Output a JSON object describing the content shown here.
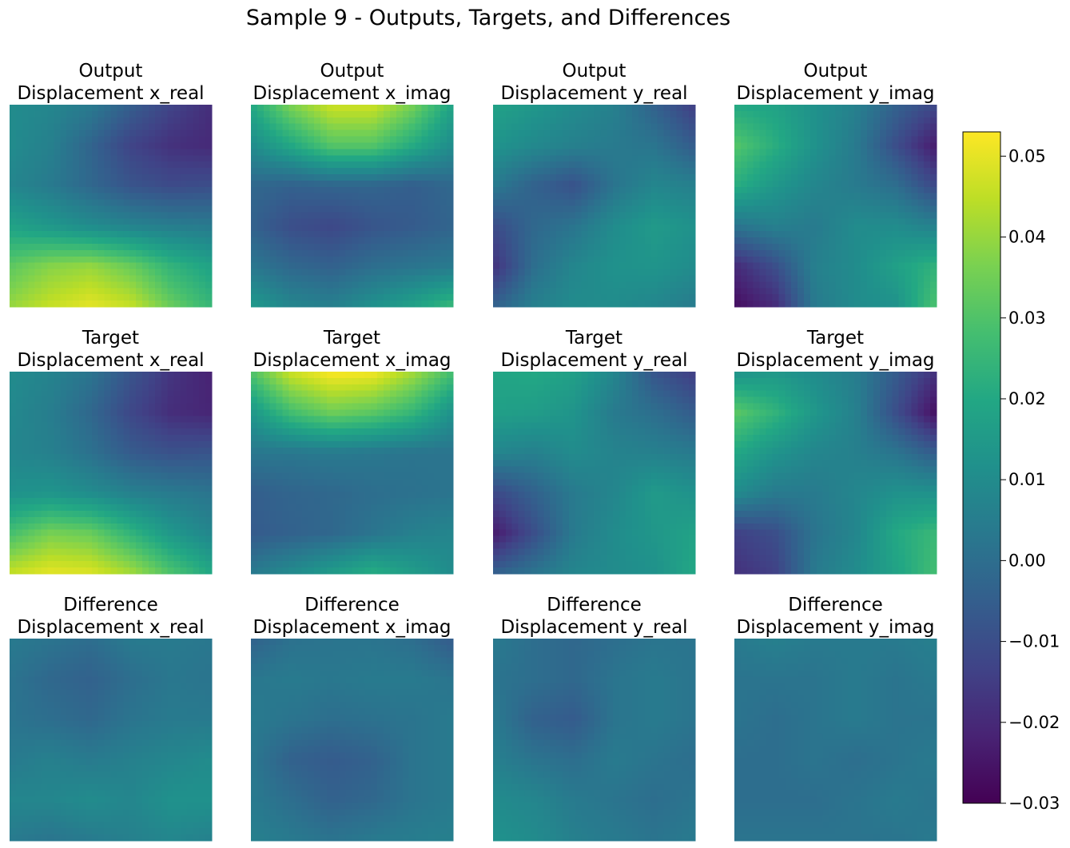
{
  "chart_data": {
    "type": "heatmap",
    "title": "Sample 9 - Outputs, Targets, and Differences",
    "colormap": "viridis",
    "colorbar": {
      "vmin": -0.03,
      "vmax": 0.053,
      "ticks": [
        {
          "value": 0.05,
          "label": "0.05"
        },
        {
          "value": 0.04,
          "label": "0.04"
        },
        {
          "value": 0.03,
          "label": "0.03"
        },
        {
          "value": 0.02,
          "label": "0.02"
        },
        {
          "value": 0.01,
          "label": "0.01"
        },
        {
          "value": 0.0,
          "label": "0.00"
        },
        {
          "value": -0.01,
          "label": "−0.01"
        },
        {
          "value": -0.02,
          "label": "−0.02"
        },
        {
          "value": -0.03,
          "label": "−0.03"
        }
      ]
    },
    "axes_visible": false,
    "grid": false,
    "rows": [
      {
        "name": "Output",
        "panels": [
          {
            "title": "Output",
            "subtitle": "Displacement x_real"
          },
          {
            "title": "Output",
            "subtitle": "Displacement x_imag"
          },
          {
            "title": "Output",
            "subtitle": "Displacement y_real"
          },
          {
            "title": "Output",
            "subtitle": "Displacement y_imag"
          }
        ]
      },
      {
        "name": "Target",
        "panels": [
          {
            "title": "Target",
            "subtitle": "Displacement x_real"
          },
          {
            "title": "Target",
            "subtitle": "Displacement x_imag"
          },
          {
            "title": "Target",
            "subtitle": "Displacement y_real"
          },
          {
            "title": "Target",
            "subtitle": "Displacement y_imag"
          }
        ]
      },
      {
        "name": "Difference",
        "panels": [
          {
            "title": "Difference",
            "subtitle": "Displacement x_real"
          },
          {
            "title": "Difference",
            "subtitle": "Displacement x_imag"
          },
          {
            "title": "Difference",
            "subtitle": "Displacement y_real"
          },
          {
            "title": "Difference",
            "subtitle": "Displacement y_imag"
          }
        ]
      }
    ],
    "fields": {
      "output_x_real": [
        [
          0.01,
          0.008,
          0.004,
          -0.005,
          -0.013,
          -0.019
        ],
        [
          0.01,
          0.006,
          -0.003,
          -0.013,
          -0.018,
          -0.02
        ],
        [
          0.008,
          0.004,
          -0.002,
          -0.008,
          -0.011,
          -0.01
        ],
        [
          0.018,
          0.014,
          0.01,
          0.007,
          0.005,
          0.004
        ],
        [
          0.032,
          0.038,
          0.04,
          0.034,
          0.024,
          0.018
        ],
        [
          0.04,
          0.046,
          0.05,
          0.046,
          0.034,
          0.025
        ]
      ],
      "output_x_imag": [
        [
          0.02,
          0.037,
          0.047,
          0.047,
          0.036,
          0.018
        ],
        [
          0.01,
          0.02,
          0.031,
          0.031,
          0.021,
          0.01
        ],
        [
          -0.002,
          -0.004,
          -0.003,
          -0.003,
          -0.005,
          -0.002
        ],
        [
          -0.004,
          -0.01,
          -0.012,
          -0.008,
          -0.006,
          -0.003
        ],
        [
          0.003,
          -0.002,
          -0.004,
          0.0,
          0.002,
          0.004
        ],
        [
          0.015,
          0.008,
          0.006,
          0.012,
          0.018,
          0.026
        ]
      ],
      "output_y_real": [
        [
          0.018,
          0.014,
          0.01,
          0.006,
          -0.004,
          -0.015
        ],
        [
          0.013,
          0.009,
          0.006,
          0.004,
          0.002,
          -0.006
        ],
        [
          0.004,
          -0.004,
          -0.009,
          0.002,
          0.008,
          0.006
        ],
        [
          -0.011,
          -0.002,
          0.002,
          0.01,
          0.015,
          0.012
        ],
        [
          -0.018,
          0.0,
          0.008,
          0.012,
          0.013,
          0.01
        ],
        [
          -0.004,
          0.006,
          0.01,
          0.01,
          0.008,
          0.004
        ]
      ],
      "output_y_imag": [
        [
          0.02,
          0.018,
          0.012,
          0.006,
          -0.004,
          -0.012
        ],
        [
          0.031,
          0.022,
          0.012,
          0.004,
          -0.01,
          -0.024
        ],
        [
          0.022,
          0.014,
          0.008,
          0.004,
          0.0,
          -0.012
        ],
        [
          0.002,
          0.006,
          0.004,
          0.01,
          0.01,
          0.006
        ],
        [
          -0.02,
          -0.01,
          0.006,
          0.01,
          0.017,
          0.024
        ],
        [
          -0.027,
          -0.02,
          0.004,
          0.01,
          0.012,
          0.03
        ]
      ],
      "target_x_real": [
        [
          0.01,
          0.007,
          0.002,
          -0.008,
          -0.017,
          -0.022
        ],
        [
          0.009,
          0.005,
          -0.002,
          -0.012,
          -0.019,
          -0.021
        ],
        [
          0.008,
          0.006,
          0.001,
          -0.006,
          -0.009,
          -0.008
        ],
        [
          0.012,
          0.013,
          0.01,
          0.006,
          0.004,
          0.002
        ],
        [
          0.028,
          0.036,
          0.034,
          0.024,
          0.014,
          0.008
        ],
        [
          0.046,
          0.05,
          0.049,
          0.042,
          0.03,
          0.02
        ]
      ],
      "target_x_imag": [
        [
          0.03,
          0.047,
          0.053,
          0.052,
          0.042,
          0.028
        ],
        [
          0.014,
          0.028,
          0.035,
          0.032,
          0.025,
          0.012
        ],
        [
          0.003,
          0.003,
          0.004,
          0.003,
          0.002,
          0.002
        ],
        [
          -0.005,
          -0.003,
          -0.002,
          0.0,
          0.001,
          0.002
        ],
        [
          -0.006,
          -0.004,
          -0.002,
          0.002,
          0.006,
          0.008
        ],
        [
          0.004,
          0.01,
          0.016,
          0.022,
          0.016,
          0.01
        ]
      ],
      "target_y_real": [
        [
          0.019,
          0.02,
          0.017,
          0.008,
          -0.008,
          -0.015
        ],
        [
          0.017,
          0.016,
          0.013,
          0.004,
          0.0,
          -0.006
        ],
        [
          0.008,
          0.006,
          0.01,
          0.007,
          0.006,
          0.004
        ],
        [
          -0.012,
          -0.004,
          0.004,
          0.008,
          0.015,
          0.012
        ],
        [
          -0.024,
          -0.01,
          0.004,
          0.01,
          0.014,
          0.018
        ],
        [
          -0.004,
          0.002,
          0.008,
          0.01,
          0.012,
          0.02
        ]
      ],
      "target_y_imag": [
        [
          0.012,
          0.014,
          0.01,
          0.005,
          -0.006,
          -0.018
        ],
        [
          0.032,
          0.024,
          0.014,
          0.006,
          -0.01,
          -0.027
        ],
        [
          0.02,
          0.013,
          0.008,
          0.006,
          0.002,
          -0.006
        ],
        [
          0.01,
          0.004,
          0.004,
          0.008,
          0.012,
          0.012
        ],
        [
          -0.014,
          -0.01,
          0.002,
          0.008,
          0.02,
          0.026
        ],
        [
          -0.018,
          -0.014,
          0.004,
          0.01,
          0.018,
          0.028
        ]
      ],
      "difference_x_real": [
        [
          0.004,
          0.002,
          0.0,
          0.004,
          0.004,
          0.003
        ],
        [
          0.002,
          -0.002,
          -0.004,
          0.0,
          0.003,
          0.002
        ],
        [
          0.002,
          0.0,
          -0.002,
          0.002,
          0.004,
          0.004
        ],
        [
          0.004,
          0.006,
          0.004,
          0.006,
          0.008,
          0.01
        ],
        [
          0.008,
          0.008,
          0.01,
          0.008,
          0.012,
          0.012
        ],
        [
          0.004,
          0.002,
          0.004,
          0.006,
          0.008,
          0.006
        ]
      ],
      "difference_x_imag": [
        [
          -0.004,
          0.001,
          0.002,
          0.002,
          0.0,
          -0.006
        ],
        [
          0.003,
          0.004,
          0.003,
          0.004,
          0.004,
          0.002
        ],
        [
          0.004,
          0.002,
          0.0,
          0.001,
          0.002,
          0.004
        ],
        [
          0.003,
          -0.004,
          -0.006,
          -0.004,
          0.002,
          0.004
        ],
        [
          0.004,
          0.0,
          -0.004,
          -0.002,
          0.002,
          0.004
        ],
        [
          0.006,
          0.004,
          0.002,
          0.004,
          0.005,
          0.006
        ]
      ],
      "difference_y_real": [
        [
          0.004,
          0.0,
          -0.002,
          0.0,
          0.002,
          0.002
        ],
        [
          0.002,
          0.0,
          -0.002,
          0.002,
          0.004,
          0.002
        ],
        [
          0.004,
          -0.004,
          -0.006,
          0.002,
          0.004,
          0.002
        ],
        [
          0.006,
          0.002,
          0.0,
          0.004,
          0.002,
          0.0
        ],
        [
          0.01,
          0.008,
          0.004,
          0.002,
          0.0,
          0.002
        ],
        [
          0.012,
          0.01,
          0.006,
          0.004,
          0.002,
          0.004
        ]
      ],
      "difference_y_imag": [
        [
          0.004,
          0.006,
          0.004,
          0.004,
          0.004,
          0.006
        ],
        [
          0.002,
          0.002,
          0.002,
          0.004,
          0.002,
          0.004
        ],
        [
          0.002,
          0.0,
          0.002,
          0.004,
          0.002,
          0.002
        ],
        [
          0.0,
          0.0,
          0.002,
          0.0,
          0.002,
          0.004
        ],
        [
          0.0,
          0.0,
          0.0,
          0.002,
          0.004,
          0.002
        ],
        [
          0.002,
          0.002,
          0.002,
          0.002,
          0.002,
          0.004
        ]
      ]
    }
  }
}
